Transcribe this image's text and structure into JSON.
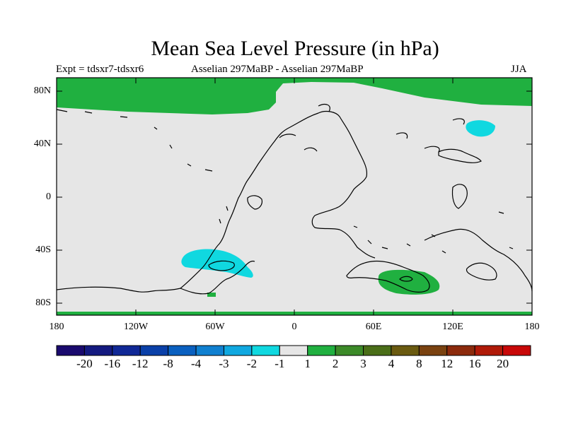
{
  "title": "Mean Sea Level Pressure (in hPa)",
  "subtitle_left": "Expt = tdsxr7-tdsxr6",
  "subtitle_center": "Asselian 297MaBP - Asselian 297MaBP",
  "subtitle_right": "JJA",
  "y_ticks": [
    "80N",
    "40N",
    "0",
    "40S",
    "80S"
  ],
  "x_ticks": [
    "180",
    "120W",
    "60W",
    "0",
    "60E",
    "120E",
    "180"
  ],
  "colorbar": {
    "colors": [
      "#1a0a6e",
      "#141a80",
      "#102896",
      "#0a40a8",
      "#0a60c0",
      "#1080d0",
      "#10a8e0",
      "#10d8e0",
      "#e6e6e6",
      "#20b040",
      "#3c8a28",
      "#4a6e18",
      "#6a5a10",
      "#7a4210",
      "#8c2a0c",
      "#b01a08",
      "#c80808"
    ],
    "labels": [
      "-20",
      "-16",
      "-12",
      "-8",
      "-4",
      "-3",
      "-2",
      "-1",
      "1",
      "2",
      "3",
      "4",
      "8",
      "12",
      "16",
      "20"
    ]
  },
  "palette": {
    "background": "#e6e6e6",
    "positive": "#20b040",
    "negative": "#10d8e0",
    "coast": "#000000"
  }
}
